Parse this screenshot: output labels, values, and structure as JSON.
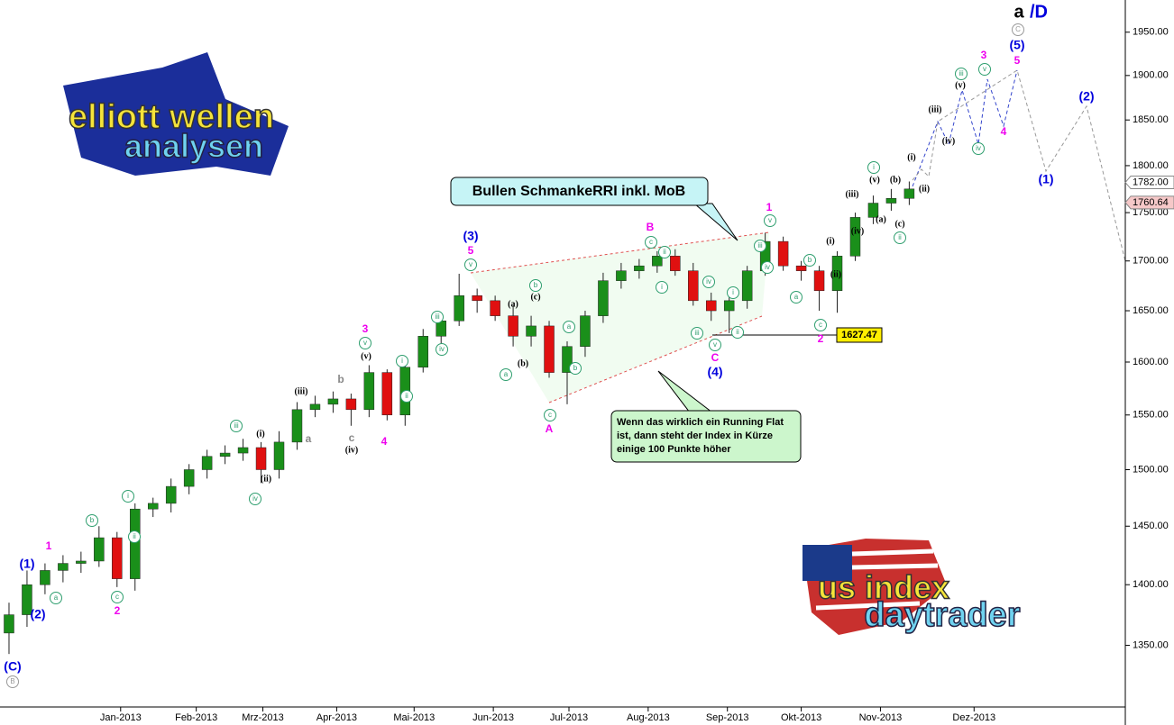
{
  "chart_data": {
    "type": "candlestick",
    "log": true,
    "up_color": "#1a8f1a",
    "down_color": "#e01010",
    "categories": [
      null,
      null,
      null,
      null,
      null,
      null,
      null,
      null,
      null,
      null,
      null,
      null,
      null,
      null,
      null,
      null,
      null,
      null,
      null,
      null,
      null,
      null,
      null,
      null,
      null,
      null,
      null,
      null,
      null,
      null,
      null,
      null,
      null,
      null,
      null,
      null,
      null,
      null,
      null,
      null,
      null,
      null,
      null,
      null,
      null,
      null,
      null,
      null,
      null,
      null,
      null
    ],
    "open": [
      1360,
      1375,
      1400,
      1412,
      1418,
      1420,
      1440,
      1405,
      1465,
      1470,
      1485,
      1500,
      1512,
      1515,
      1520,
      1500,
      1525,
      1555,
      1560,
      1565,
      1555,
      1590,
      1550,
      1595,
      1625,
      1640,
      1665,
      1660,
      1645,
      1625,
      1635,
      1590,
      1615,
      1645,
      1680,
      1690,
      1695,
      1705,
      1690,
      1660,
      1650,
      1660,
      1690,
      1720,
      1695,
      1690,
      1670,
      1705,
      1745,
      1760,
      1765
    ],
    "high": [
      1385,
      1412,
      1418,
      1425,
      1428,
      1450,
      1445,
      1470,
      1475,
      1492,
      1505,
      1518,
      1522,
      1528,
      1525,
      1535,
      1562,
      1568,
      1572,
      1570,
      1597,
      1593,
      1600,
      1632,
      1648,
      1687,
      1672,
      1665,
      1655,
      1645,
      1640,
      1620,
      1650,
      1688,
      1698,
      1702,
      1710,
      1712,
      1698,
      1668,
      1665,
      1695,
      1729,
      1725,
      1700,
      1695,
      1710,
      1750,
      1768,
      1775,
      1783
    ],
    "low": [
      1343,
      1365,
      1392,
      1402,
      1410,
      1415,
      1398,
      1395,
      1458,
      1462,
      1478,
      1492,
      1505,
      1508,
      1488,
      1492,
      1518,
      1548,
      1552,
      1540,
      1548,
      1545,
      1540,
      1590,
      1618,
      1635,
      1648,
      1640,
      1615,
      1615,
      1585,
      1560,
      1605,
      1638,
      1672,
      1682,
      1688,
      1685,
      1655,
      1640,
      1628,
      1652,
      1685,
      1690,
      1680,
      1650,
      1648,
      1700,
      1738,
      1752,
      1758
    ],
    "close": [
      1375,
      1400,
      1412,
      1418,
      1420,
      1440,
      1405,
      1465,
      1470,
      1485,
      1500,
      1512,
      1515,
      1520,
      1500,
      1525,
      1555,
      1560,
      1565,
      1555,
      1590,
      1550,
      1595,
      1625,
      1640,
      1665,
      1660,
      1645,
      1625,
      1635,
      1590,
      1615,
      1645,
      1680,
      1690,
      1695,
      1705,
      1690,
      1660,
      1650,
      1660,
      1690,
      1720,
      1695,
      1690,
      1670,
      1705,
      1745,
      1760,
      1765,
      1775
    ],
    "xlim": [
      -0.5,
      62
    ],
    "xticks": [
      {
        "value": 6.2,
        "label": "Jan-2013"
      },
      {
        "value": 10.4,
        "label": "Feb-2013"
      },
      {
        "value": 14.1,
        "label": "Mrz-2013"
      },
      {
        "value": 18.2,
        "label": "Apr-2013"
      },
      {
        "value": 22.5,
        "label": "Mai-2013"
      },
      {
        "value": 26.9,
        "label": "Jun-2013"
      },
      {
        "value": 31.1,
        "label": "Jul-2013"
      },
      {
        "value": 35.5,
        "label": "Aug-2013"
      },
      {
        "value": 39.9,
        "label": "Sep-2013"
      },
      {
        "value": 44.0,
        "label": "Okt-2013"
      },
      {
        "value": 48.4,
        "label": "Nov-2013"
      },
      {
        "value": 53.6,
        "label": "Dez-2013"
      }
    ],
    "ylim": [
      1301,
      1988
    ],
    "yticks": [
      {
        "value": 1350,
        "label": "1350.00"
      },
      {
        "value": 1400,
        "label": "1400.00"
      },
      {
        "value": 1450,
        "label": "1450.00"
      },
      {
        "value": 1500,
        "label": "1500.00"
      },
      {
        "value": 1550,
        "label": "1550.00"
      },
      {
        "value": 1600,
        "label": "1600.00"
      },
      {
        "value": 1650,
        "label": "1650.00"
      },
      {
        "value": 1700,
        "label": "1700.00"
      },
      {
        "value": 1750,
        "label": "1750.00"
      },
      {
        "value": 1800,
        "label": "1800.00"
      },
      {
        "value": 1850,
        "label": "1850.00"
      },
      {
        "value": 1900,
        "label": "1900.00"
      },
      {
        "value": 1950,
        "label": "1950.00"
      }
    ],
    "price_markers": [
      {
        "value": 1782,
        "label": "1782.00",
        "color": "#ffffff"
      },
      {
        "value": 1760.64,
        "label": "1760.64",
        "color": "#f6c8c8"
      }
    ],
    "level_label": {
      "value": 1627.47,
      "label": "1627.47"
    },
    "callout": "Bullen SchmankeRRI inkl. MoB",
    "note": [
      "Wenn das wirklich ein Running Flat",
      "ist, dann steht der Index in Kürze",
      "einige 100 Punkte höher"
    ],
    "logo_top": [
      "elliott wellen",
      "analysen"
    ],
    "logo_bottom": [
      "us index",
      "daytrader"
    ],
    "annotations": [
      {
        "text": "a",
        "color": "#000000"
      },
      {
        "text": "/D",
        "color": "#0000dd"
      },
      {
        "text": "(C)",
        "color": "#0000dd"
      },
      {
        "text": "(1)",
        "color": "#0000dd"
      },
      {
        "text": "(2)",
        "color": "#0000dd"
      },
      {
        "text": "(3)",
        "color": "#0000dd"
      },
      {
        "text": "(4)",
        "color": "#0000dd"
      },
      {
        "text": "(5)",
        "color": "#0000dd"
      },
      {
        "text": "(1)",
        "color": "#0000dd"
      },
      {
        "text": "(2)",
        "color": "#0000dd"
      },
      {
        "text": "1",
        "color": "#ee00ee"
      },
      {
        "text": "2",
        "color": "#ee00ee"
      },
      {
        "text": "3",
        "color": "#ee00ee"
      },
      {
        "text": "5",
        "color": "#ee00ee"
      },
      {
        "text": "4",
        "color": "#ee00ee"
      },
      {
        "text": "B",
        "color": "#ee00ee"
      },
      {
        "text": "A",
        "color": "#ee00ee"
      },
      {
        "text": "C",
        "color": "#ee00ee"
      },
      {
        "text": "1",
        "color": "#ee00ee"
      },
      {
        "text": "2",
        "color": "#ee00ee"
      },
      {
        "text": "3",
        "color": "#ee00ee"
      },
      {
        "text": "5",
        "color": "#ee00ee"
      },
      {
        "text": "4",
        "color": "#ee00ee"
      },
      {
        "text": "a",
        "color": "#2e9e6e",
        "circled": true
      },
      {
        "text": "b",
        "color": "#2e9e6e",
        "circled": true
      },
      {
        "text": "c",
        "color": "#2e9e6e",
        "circled": true
      },
      {
        "text": "i",
        "color": "#2e9e6e",
        "circled": true
      },
      {
        "text": "ii",
        "color": "#2e9e6e",
        "circled": true
      },
      {
        "text": "iii",
        "color": "#2e9e6e",
        "circled": true
      },
      {
        "text": "iv",
        "color": "#2e9e6e",
        "circled": true
      },
      {
        "text": "i",
        "color": "#2e9e6e",
        "circled": true
      },
      {
        "text": "ii",
        "color": "#2e9e6e",
        "circled": true
      },
      {
        "text": "iii",
        "color": "#2e9e6e",
        "circled": true
      },
      {
        "text": "iv",
        "color": "#2e9e6e",
        "circled": true
      },
      {
        "text": "v",
        "color": "#2e9e6e",
        "circled": true
      },
      {
        "text": "v",
        "color": "#2e9e6e",
        "circled": true
      },
      {
        "text": "a",
        "color": "#2e9e6e",
        "circled": true
      },
      {
        "text": "b",
        "color": "#2e9e6e",
        "circled": true
      },
      {
        "text": "c",
        "color": "#2e9e6e",
        "circled": true
      },
      {
        "text": "a",
        "color": "#2e9e6e",
        "circled": true
      },
      {
        "text": "b",
        "color": "#2e9e6e",
        "circled": true
      },
      {
        "text": "c",
        "color": "#2e9e6e",
        "circled": true
      },
      {
        "text": "ii",
        "color": "#2e9e6e",
        "circled": true
      },
      {
        "text": "i",
        "color": "#2e9e6e",
        "circled": true
      },
      {
        "text": "iv",
        "color": "#2e9e6e",
        "circled": true
      },
      {
        "text": "iii",
        "color": "#2e9e6e",
        "circled": true
      },
      {
        "text": "v",
        "color": "#2e9e6e",
        "circled": true
      },
      {
        "text": "i",
        "color": "#2e9e6e",
        "circled": true
      },
      {
        "text": "ii",
        "color": "#2e9e6e",
        "circled": true
      },
      {
        "text": "iii",
        "color": "#2e9e6e",
        "circled": true
      },
      {
        "text": "v",
        "color": "#2e9e6e",
        "circled": true
      },
      {
        "text": "iv",
        "color": "#2e9e6e",
        "circled": true
      },
      {
        "text": "a",
        "color": "#2e9e6e",
        "circled": true
      },
      {
        "text": "b",
        "color": "#2e9e6e",
        "circled": true
      },
      {
        "text": "c",
        "color": "#2e9e6e",
        "circled": true
      },
      {
        "text": "i",
        "color": "#2e9e6e",
        "circled": true
      },
      {
        "text": "ii",
        "color": "#2e9e6e",
        "circled": true
      },
      {
        "text": "iii",
        "color": "#2e9e6e",
        "circled": true
      },
      {
        "text": "v",
        "color": "#2e9e6e",
        "circled": true
      },
      {
        "text": "iv",
        "color": "#2e9e6e",
        "circled": true
      },
      {
        "text": "C",
        "color": "#999999",
        "circled": true
      },
      {
        "text": "B",
        "color": "#999999",
        "circled": true
      },
      {
        "text": "(i)",
        "color": "#000000"
      },
      {
        "text": "(ii)",
        "color": "#000000"
      },
      {
        "text": "(iii)",
        "color": "#000000"
      },
      {
        "text": "(v)",
        "color": "#000000"
      },
      {
        "text": "(iv)",
        "color": "#000000"
      },
      {
        "text": "(a)",
        "color": "#000000"
      },
      {
        "text": "(c)",
        "color": "#000000"
      },
      {
        "text": "(b)",
        "color": "#000000"
      },
      {
        "text": "(i)",
        "color": "#000000"
      },
      {
        "text": "(ii)",
        "color": "#000000"
      },
      {
        "text": "(iii)",
        "color": "#000000"
      },
      {
        "text": "(iv)",
        "color": "#000000"
      },
      {
        "text": "(v)",
        "color": "#000000"
      },
      {
        "text": "(a)",
        "color": "#000000"
      },
      {
        "text": "(b)",
        "color": "#000000"
      },
      {
        "text": "(c)",
        "color": "#000000"
      },
      {
        "text": "(i)",
        "color": "#000000"
      },
      {
        "text": "(ii)",
        "color": "#000000"
      },
      {
        "text": "(iii)",
        "color": "#000000"
      },
      {
        "text": "(iv)",
        "color": "#000000"
      },
      {
        "text": "(v)",
        "color": "#000000"
      },
      {
        "text": "a",
        "color": "#888888"
      },
      {
        "text": "b",
        "color": "#888888"
      },
      {
        "text": "c",
        "color": "#888888"
      }
    ]
  }
}
